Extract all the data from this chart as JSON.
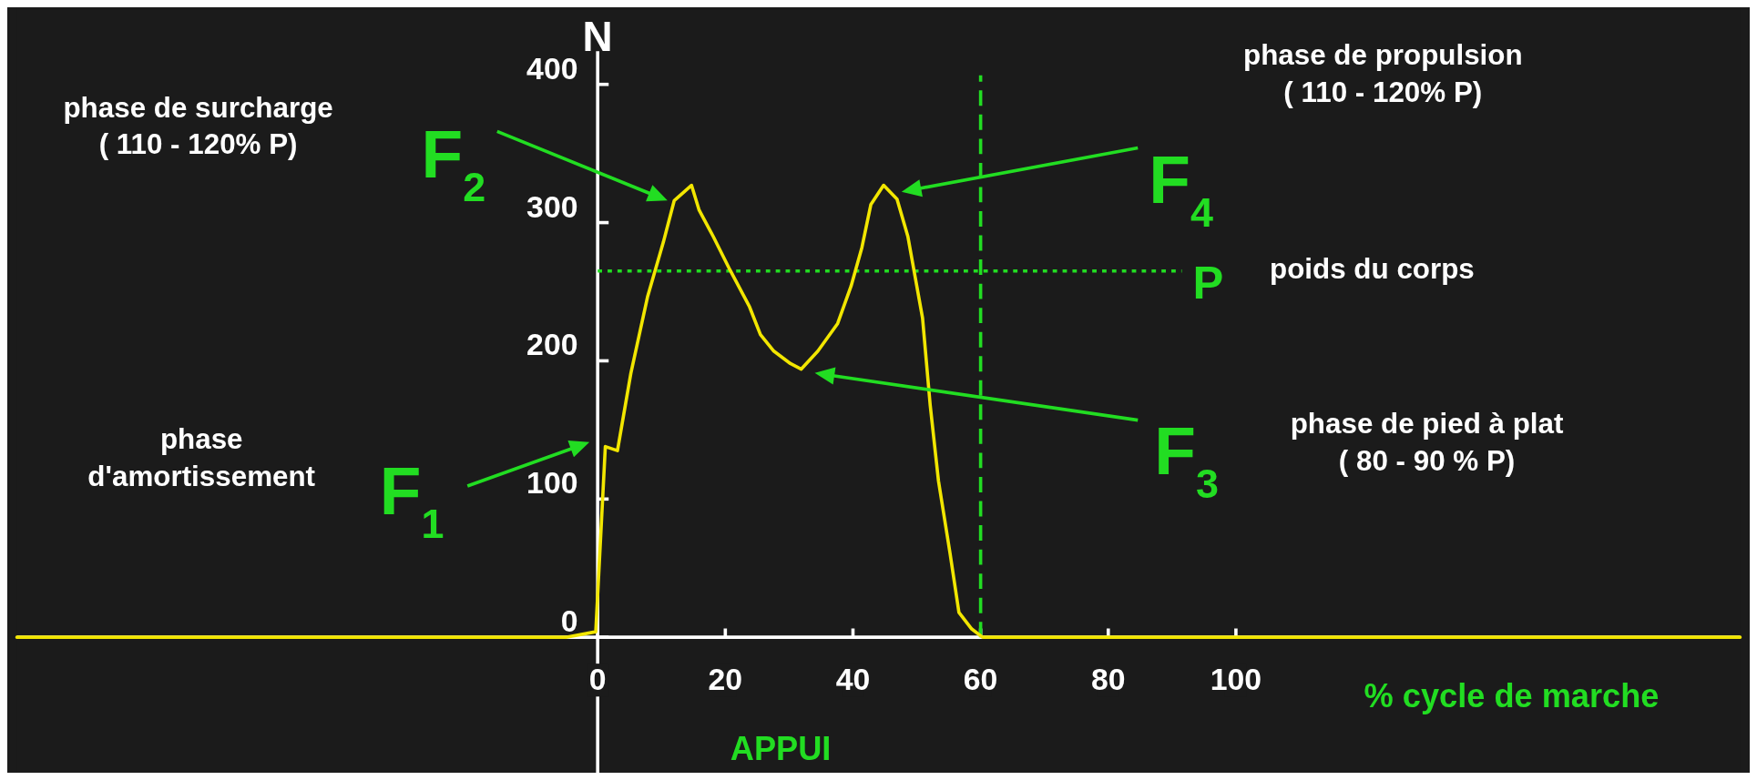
{
  "chart_data": {
    "type": "line",
    "xlabel": "% cycle de marche",
    "ylabel": "N",
    "xlim": [
      -91,
      179
    ],
    "ylim": [
      -98,
      424
    ],
    "xticks": [
      0,
      20,
      40,
      60,
      80,
      100
    ],
    "yticks": [
      0,
      100,
      200,
      300,
      400
    ],
    "grid": false,
    "line_style": "solid",
    "series": [
      {
        "color": "#f2e600",
        "x": [
          -91,
          -5,
          -0.3,
          1.2,
          3.1,
          5.2,
          7.8,
          10.3,
          12,
          14.7,
          15.9,
          18.1,
          20.7,
          23.8,
          25.5,
          27.6,
          30.2,
          31.9,
          34.5,
          37.6,
          39.7,
          41.4,
          42.8,
          44.8,
          46.9,
          48.6,
          50.9,
          52.1,
          53.4,
          55.2,
          56.6,
          58.6,
          60.3,
          179
        ],
        "values": [
          0,
          0,
          4,
          138,
          135,
          191,
          246,
          286,
          316,
          327,
          309,
          290,
          266,
          239,
          219,
          207,
          198,
          194,
          207,
          227,
          254,
          282,
          313,
          327,
          317,
          290,
          231,
          168,
          113,
          61,
          18,
          6,
          0,
          0
        ]
      }
    ],
    "ref_lines": [
      {
        "axis": "y",
        "value": 265,
        "label": "P",
        "color": "#22dd22",
        "line_style": "dotted"
      },
      {
        "axis": "x",
        "value": 60,
        "color": "#22dd22",
        "line_style": "dashed"
      }
    ],
    "annotations": [
      "phase de surcharge\n( 110 - 120% P)",
      "phase\nd'amortissement",
      "phase de propulsion\n( 110 - 120% P)",
      "poids du corps",
      "phase de pied à plat\n( 80 - 90 % P)",
      "APPUI",
      "F$_{1}$",
      "F$_{2}$",
      "F$_{3}$",
      "F$_{4}$"
    ]
  }
}
